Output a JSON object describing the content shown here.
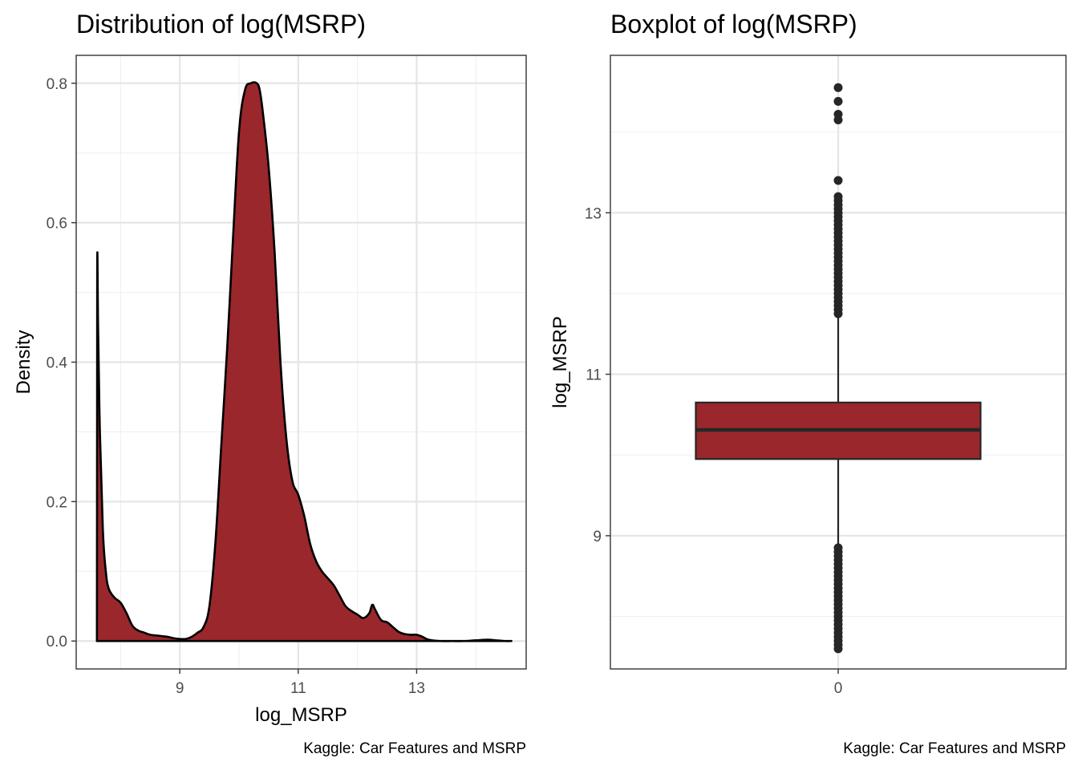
{
  "chart_data": [
    {
      "type": "area",
      "title": "Distribution of log(MSRP)",
      "xlabel": "log_MSRP",
      "ylabel": "Density",
      "caption": "Kaggle: Car  Features and MSRP",
      "xlim": [
        7.25,
        14.85
      ],
      "ylim": [
        -0.04,
        0.84
      ],
      "xticks": [
        9,
        11,
        13
      ],
      "yticks": [
        0.0,
        0.2,
        0.4,
        0.6,
        0.8
      ],
      "xtick_labels": [
        "9",
        "11",
        "13"
      ],
      "ytick_labels": [
        "0.0",
        "0.2",
        "0.4",
        "0.6",
        "0.8"
      ],
      "grid": true,
      "fill_color": "#99272c",
      "line_color": "#000000",
      "x": [
        7.6,
        7.605,
        7.62,
        7.65,
        7.7,
        7.75,
        7.8,
        7.9,
        8.0,
        8.1,
        8.2,
        8.3,
        8.4,
        8.5,
        8.6,
        8.7,
        8.8,
        8.9,
        9.0,
        9.1,
        9.2,
        9.3,
        9.4,
        9.5,
        9.6,
        9.7,
        9.8,
        9.9,
        10.0,
        10.1,
        10.2,
        10.3,
        10.35,
        10.4,
        10.5,
        10.6,
        10.7,
        10.8,
        10.9,
        11.0,
        11.1,
        11.2,
        11.3,
        11.4,
        11.5,
        11.6,
        11.7,
        11.8,
        11.9,
        12.0,
        12.1,
        12.2,
        12.25,
        12.3,
        12.4,
        12.5,
        12.6,
        12.7,
        12.8,
        12.9,
        13.0,
        13.1,
        13.2,
        13.4,
        13.6,
        13.8,
        14.0,
        14.2,
        14.35,
        14.5,
        14.6
      ],
      "y": [
        0.0,
        0.53,
        0.45,
        0.3,
        0.16,
        0.1,
        0.075,
        0.062,
        0.055,
        0.04,
        0.022,
        0.015,
        0.012,
        0.009,
        0.008,
        0.007,
        0.006,
        0.004,
        0.003,
        0.003,
        0.006,
        0.012,
        0.02,
        0.05,
        0.14,
        0.28,
        0.42,
        0.58,
        0.73,
        0.79,
        0.8,
        0.8,
        0.79,
        0.76,
        0.68,
        0.56,
        0.4,
        0.29,
        0.23,
        0.21,
        0.18,
        0.14,
        0.115,
        0.1,
        0.09,
        0.08,
        0.065,
        0.05,
        0.043,
        0.038,
        0.033,
        0.04,
        0.052,
        0.045,
        0.03,
        0.027,
        0.02,
        0.013,
        0.01,
        0.009,
        0.009,
        0.006,
        0.002,
        0.0,
        0.0,
        0.0,
        0.001,
        0.002,
        0.001,
        0.0,
        0.0
      ]
    },
    {
      "type": "box",
      "title": "Boxplot of log(MSRP)",
      "xlabel": "",
      "ylabel": "log_MSRP",
      "caption": "Kaggle: Car Features and MSRP",
      "xlim": [
        -0.4,
        0.4
      ],
      "ylim": [
        7.35,
        14.95
      ],
      "xticks": [
        0
      ],
      "xtick_labels": [
        "0"
      ],
      "yticks": [
        9,
        11,
        13
      ],
      "ytick_labels": [
        "9",
        "11",
        "13"
      ],
      "grid": true,
      "fill_color": "#99272c",
      "line_color": "#262626",
      "category": 0,
      "box_halfwidth": 0.25,
      "q1": 9.95,
      "median": 10.31,
      "q3": 10.65,
      "whisker_low": 8.9,
      "whisker_high": 11.7,
      "outliers_high": [
        11.75,
        11.8,
        11.85,
        11.9,
        11.95,
        12.0,
        12.05,
        12.1,
        12.15,
        12.2,
        12.25,
        12.3,
        12.35,
        12.4,
        12.45,
        12.5,
        12.55,
        12.6,
        12.65,
        12.7,
        12.75,
        12.8,
        12.85,
        12.9,
        12.95,
        13.0,
        13.05,
        13.1,
        13.15,
        13.2,
        13.4,
        14.15,
        14.22,
        14.38,
        14.55
      ],
      "outliers_low": [
        8.85,
        8.8,
        8.75,
        8.7,
        8.65,
        8.6,
        8.55,
        8.5,
        8.45,
        8.4,
        8.35,
        8.3,
        8.25,
        8.2,
        8.15,
        8.1,
        8.05,
        8.0,
        7.95,
        7.9,
        7.85,
        7.8,
        7.75,
        7.7,
        7.65,
        7.6
      ]
    }
  ]
}
